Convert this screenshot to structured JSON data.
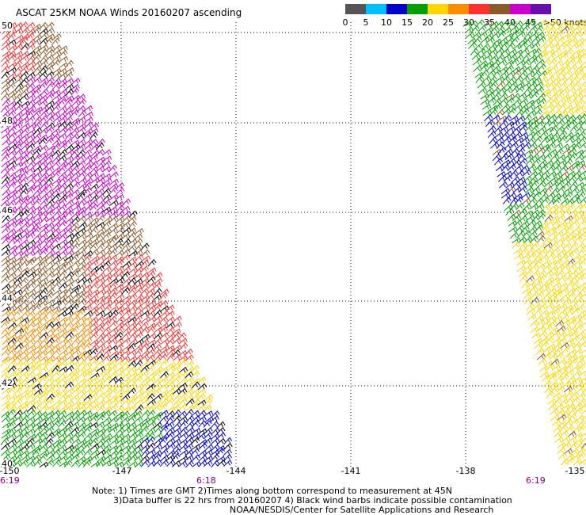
{
  "title": "ASCAT 25KM NOAA Winds 20160207 ascending",
  "legend": {
    "unit_label": ">50 knots",
    "ticks": [
      "0",
      "5",
      "10",
      "15",
      "20",
      "25",
      "30",
      "35",
      "40",
      "45"
    ],
    "colors": [
      "#555555",
      "#00bfff",
      "#0000cd",
      "#00a000",
      "#ffd700",
      "#ff8c00",
      "#ff3030",
      "#8b5a2b",
      "#cc00cc",
      "#6a0dad"
    ]
  },
  "map": {
    "lat_labels": [
      "50",
      "48",
      "46",
      "44",
      "42",
      "40"
    ],
    "lon_labels": [
      "-150",
      "-147",
      "-144",
      "-141",
      "-138",
      "-135"
    ],
    "time_labels": [
      "6:19",
      "6:18",
      "6:19"
    ]
  },
  "notes": {
    "line1": "Note: 1) Times are GMT 2)Times along bottom correspond to measurement at 45N",
    "line2": "3)Data buffer is 22 hrs from 20160207 4) Black wind barbs indicate possible contamination",
    "line3": "NOAA/NESDIS/Center for Satellite Applications and Research"
  }
}
